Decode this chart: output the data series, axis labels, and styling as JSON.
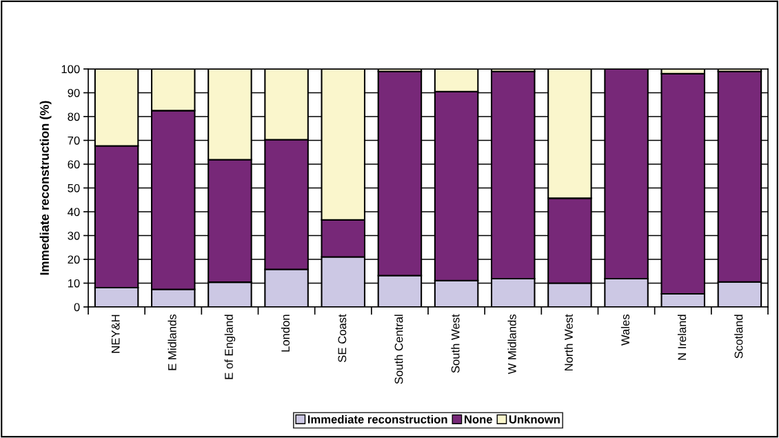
{
  "chart_data": {
    "type": "bar",
    "stacked": true,
    "ylabel": "Immediate reconstruction (%)",
    "categories": [
      "NEY&H",
      "E Midlands",
      "E of England",
      "London",
      "SE Coast",
      "South Central",
      "South West",
      "W Midlands",
      "North West",
      "Wales",
      "N Ireland",
      "Scotland"
    ],
    "series": [
      {
        "name": "Immediate reconstruction",
        "color": "#ccc8e4",
        "values": [
          8.1,
          7.4,
          10.4,
          15.8,
          21.0,
          13.2,
          11.1,
          11.9,
          10.0,
          11.9,
          5.5,
          10.5
        ]
      },
      {
        "name": "None",
        "color": "#772878",
        "values": [
          59.6,
          75.1,
          51.5,
          54.5,
          15.6,
          85.8,
          79.4,
          87.1,
          35.7,
          88.1,
          92.5,
          88.5
        ]
      },
      {
        "name": "Unknown",
        "color": "#faf6cc",
        "values": [
          32.3,
          17.5,
          38.1,
          29.7,
          63.4,
          1.0,
          9.5,
          1.0,
          54.3,
          null,
          2.0,
          1.0
        ]
      }
    ],
    "ylim": [
      0,
      100
    ],
    "yticks": [
      0,
      10,
      20,
      30,
      40,
      50,
      60,
      70,
      80,
      90,
      100
    ],
    "grid": "y",
    "legend": "bottom"
  }
}
